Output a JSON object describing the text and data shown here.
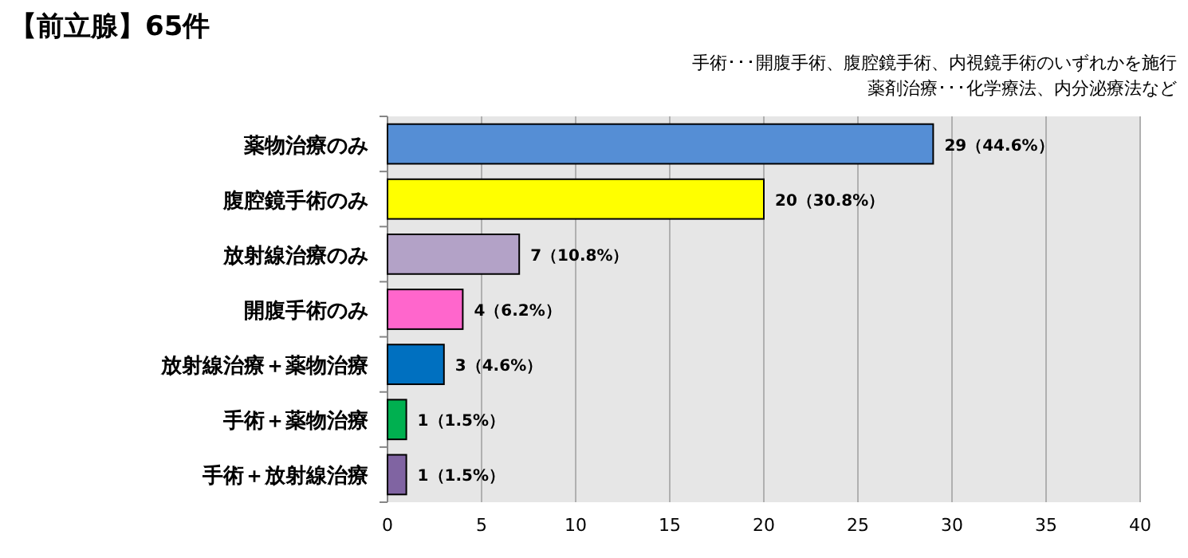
{
  "chart_data": {
    "type": "bar",
    "orientation": "horizontal",
    "title": "【前立腺】65件",
    "annotations": [
      "手術･･･開腹手術、腹腔鏡手術、内視鏡手術のいずれかを施行",
      "薬剤治療･･･化学療法、内分泌療法など"
    ],
    "categories": [
      "薬物治療のみ",
      "腹腔鏡手術のみ",
      "放射線治療のみ",
      "開腹手術のみ",
      "放射線治療＋薬物治療",
      "手術＋薬物治療",
      "手術＋放射線治療"
    ],
    "values": [
      29,
      20,
      7,
      4,
      3,
      1,
      1
    ],
    "colors": [
      "#558ed5",
      "#ffff00",
      "#b3a2c7",
      "#ff66cc",
      "#0070c0",
      "#00b050",
      "#8064a2"
    ],
    "value_labels": [
      "29（44.6%）",
      "20（30.8%）",
      "7（10.8%）",
      "4（6.2%）",
      "3（4.6%）",
      "1（1.5%）",
      "1（1.5%）"
    ],
    "xlim": [
      0,
      40
    ],
    "xticks": [
      0,
      5,
      10,
      15,
      20,
      25,
      30,
      35,
      40
    ],
    "grid": "x"
  }
}
